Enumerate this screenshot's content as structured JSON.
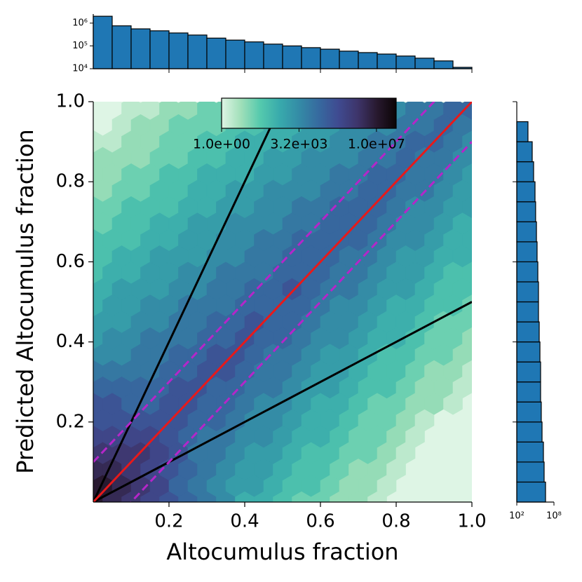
{
  "chart_data": [
    {
      "type": "hexbin",
      "xlabel": "Altocumulus fraction",
      "ylabel": "Predicted Altocumulus fraction",
      "xlim": [
        0,
        1
      ],
      "ylim": [
        0,
        1
      ],
      "xticks": [
        0.2,
        0.4,
        0.6,
        0.8,
        {
          "value": 1,
          "label": "1.0"
        }
      ],
      "yticks": [
        0.2,
        0.4,
        0.6,
        0.8,
        {
          "value": 1,
          "label": "1.0"
        }
      ],
      "log_color": true,
      "clim": [
        1,
        78000000
      ],
      "colormap": [
        "#def5e5",
        "#a0dfb9",
        "#54c9ad",
        "#38aaac",
        "#348ba6",
        "#366a9f",
        "#3f4b91",
        "#3e356b",
        "#28192f",
        "#0b0405"
      ],
      "colorbar_ticks": [
        {
          "value": 1,
          "label": "1.0e+00"
        },
        {
          "value": 3162.28,
          "label": "3.2e+03"
        },
        {
          "value": 10000000,
          "label": "1.0e+07"
        }
      ],
      "lines": [
        {
          "slope": 2,
          "intercept": 0,
          "color": "#000000",
          "dash": false
        },
        {
          "slope": 0.5,
          "intercept": 0,
          "color": "#000000",
          "dash": false
        },
        {
          "slope": 1,
          "intercept": 0,
          "color": "#e8191a",
          "dash": false
        },
        {
          "slope": 1,
          "intercept": 0.1,
          "color": "#b526c9",
          "dash": true
        },
        {
          "slope": 1,
          "intercept": -0.1,
          "color": "#b526c9",
          "dash": true
        }
      ],
      "counts": [
        [
          10000000.0,
          3000000.0,
          1000000.0,
          300000.0,
          100000.0,
          30000.0,
          10000.0,
          3000.0,
          300,
          300,
          100,
          30,
          30,
          10,
          10,
          3,
          null,
          null,
          null,
          null,
          null
        ],
        [
          10000000.0,
          3000000.0,
          1000000.0,
          300000.0,
          30000.0,
          10000.0,
          3000.0,
          1000.0,
          1000.0,
          300,
          100,
          100,
          30,
          10,
          10,
          3,
          null,
          null,
          null,
          null
        ],
        [
          3000000.0,
          3000000.0,
          1000000.0,
          300000.0,
          100000.0,
          30000.0,
          10000.0,
          3000.0,
          1000.0,
          1000.0,
          300,
          100,
          100,
          30,
          10,
          10,
          3,
          null,
          null,
          null,
          null
        ],
        [
          1000000.0,
          1000000.0,
          1000000.0,
          300000.0,
          100000.0,
          10000.0,
          10000.0,
          3000.0,
          1000.0,
          1000.0,
          300,
          100,
          100,
          30,
          30,
          10,
          3,
          null,
          null,
          null
        ],
        [
          300000.0,
          300000.0,
          300000.0,
          300000.0,
          100000.0,
          30000.0,
          10000.0,
          10000.0,
          3000.0,
          3000.0,
          1000.0,
          300,
          300,
          100,
          30,
          30,
          10,
          3,
          null,
          null,
          null
        ],
        [
          100000.0,
          100000.0,
          100000.0,
          100000.0,
          100000.0,
          30000.0,
          30000.0,
          10000.0,
          3000.0,
          3000.0,
          1000.0,
          300,
          300,
          100,
          30,
          30,
          10,
          3,
          null,
          null
        ],
        [
          100000.0,
          100000.0,
          30000.0,
          30000.0,
          100000.0,
          100000.0,
          30000.0,
          30000.0,
          10000.0,
          3000.0,
          3000.0,
          1000.0,
          300,
          300,
          100,
          30,
          30,
          10,
          10,
          3,
          null
        ],
        [
          30000.0,
          30000.0,
          30000.0,
          30000.0,
          100000.0,
          100000.0,
          30000.0,
          30000.0,
          10000.0,
          10000.0,
          3000.0,
          1000.0,
          1000.0,
          300,
          100,
          100,
          30,
          10,
          10,
          3
        ],
        [
          10000.0,
          10000.0,
          10000.0,
          10000.0,
          30000.0,
          30000.0,
          100000.0,
          100000.0,
          30000.0,
          10000.0,
          10000.0,
          3000.0,
          1000.0,
          1000.0,
          300,
          100,
          100,
          30,
          10,
          10,
          3
        ],
        [
          3000.0,
          3000.0,
          10000.0,
          10000.0,
          30000.0,
          30000.0,
          100000.0,
          100000.0,
          30000.0,
          10000.0,
          10000.0,
          3000.0,
          1000.0,
          1000.0,
          300,
          100,
          100,
          30,
          30,
          10
        ],
        [
          1000.0,
          3000.0,
          3000.0,
          10000.0,
          10000.0,
          10000.0,
          30000.0,
          30000.0,
          100000.0,
          30000.0,
          30000.0,
          10000.0,
          3000.0,
          3000.0,
          1000.0,
          300,
          300,
          100,
          30,
          30,
          10
        ],
        [
          1000.0,
          1000.0,
          3000.0,
          3000.0,
          10000.0,
          10000.0,
          30000.0,
          30000.0,
          100000.0,
          30000.0,
          30000.0,
          10000.0,
          3000.0,
          3000.0,
          1000.0,
          300,
          300,
          100,
          30,
          30
        ],
        [
          300,
          1000.0,
          1000.0,
          3000.0,
          3000.0,
          10000.0,
          10000.0,
          10000.0,
          30000.0,
          30000.0,
          30000.0,
          30000.0,
          10000.0,
          3000.0,
          3000.0,
          1000.0,
          300,
          300,
          100,
          100,
          30
        ],
        [
          300,
          1000.0,
          1000.0,
          1000.0,
          3000.0,
          3000.0,
          10000.0,
          10000.0,
          30000.0,
          30000.0,
          100000.0,
          30000.0,
          10000.0,
          10000.0,
          3000.0,
          1000.0,
          1000.0,
          300,
          100,
          100
        ],
        [
          100,
          300,
          300,
          1000.0,
          1000.0,
          3000.0,
          3000.0,
          10000.0,
          10000.0,
          10000.0,
          30000.0,
          30000.0,
          30000.0,
          10000.0,
          10000.0,
          3000.0,
          1000.0,
          1000.0,
          300,
          100,
          100
        ],
        [
          100,
          300,
          300,
          1000.0,
          1000.0,
          1000.0,
          3000.0,
          3000.0,
          10000.0,
          10000.0,
          30000.0,
          30000.0,
          30000.0,
          10000.0,
          10000.0,
          3000.0,
          1000.0,
          1000.0,
          300,
          300
        ],
        [
          100,
          100,
          100,
          300,
          300,
          1000.0,
          1000.0,
          3000.0,
          3000.0,
          10000.0,
          10000.0,
          30000.0,
          30000.0,
          30000.0,
          30000.0,
          10000.0,
          3000.0,
          3000.0,
          1000.0,
          300,
          300
        ],
        [
          30,
          100,
          100,
          300,
          300,
          1000.0,
          1000.0,
          3000.0,
          3000.0,
          3000.0,
          10000.0,
          10000.0,
          30000.0,
          30000.0,
          30000.0,
          10000.0,
          3000.0,
          3000.0,
          1000.0,
          300
        ],
        [
          30,
          30,
          100,
          100,
          100,
          300,
          300,
          1000.0,
          1000.0,
          3000.0,
          3000.0,
          10000.0,
          10000.0,
          30000.0,
          30000.0,
          30000.0,
          10000.0,
          3000.0,
          3000.0,
          1000.0,
          1000.0
        ],
        [
          10,
          30,
          30,
          100,
          100,
          300,
          300,
          1000.0,
          1000.0,
          3000.0,
          3000.0,
          3000.0,
          10000.0,
          10000.0,
          30000.0,
          30000.0,
          10000.0,
          10000.0,
          3000.0,
          1000.0
        ],
        [
          10,
          10,
          30,
          30,
          100,
          100,
          300,
          300,
          300,
          1000.0,
          1000.0,
          3000.0,
          3000.0,
          10000.0,
          10000.0,
          30000.0,
          30000.0,
          10000.0,
          10000.0,
          3000.0,
          1000.0
        ],
        [
          10,
          10,
          10,
          30,
          30,
          100,
          100,
          300,
          300,
          1000.0,
          1000.0,
          3000.0,
          3000.0,
          3000.0,
          10000.0,
          10000.0,
          30000.0,
          10000.0,
          10000.0,
          3000.0
        ],
        [
          3,
          3,
          10,
          10,
          30,
          30,
          100,
          100,
          300,
          300,
          300,
          1000.0,
          1000.0,
          3000.0,
          3000.0,
          10000.0,
          10000.0,
          30000.0,
          30000.0,
          10000.0,
          3000.0
        ],
        [
          null,
          3,
          10,
          10,
          30,
          30,
          30,
          100,
          100,
          300,
          300,
          1000.0,
          1000.0,
          3000.0,
          3000.0,
          3000.0,
          10000.0,
          10000.0,
          30000.0,
          10000.0
        ],
        [
          null,
          null,
          3,
          3,
          10,
          10,
          30,
          30,
          100,
          100,
          300,
          300,
          300,
          1000.0,
          1000.0,
          3000.0,
          3000.0,
          10000.0,
          10000.0,
          30000.0,
          30000.0
        ]
      ]
    },
    {
      "type": "histogram",
      "orientation": "vertical",
      "bins": [
        0,
        0.05,
        0.1,
        0.15,
        0.2,
        0.25,
        0.3,
        0.35,
        0.4,
        0.45,
        0.5,
        0.55,
        0.6,
        0.65,
        0.7,
        0.75,
        0.8,
        0.85,
        0.9,
        0.95,
        1
      ],
      "values": [
        2000000,
        760000,
        560000,
        460000,
        370000,
        300000,
        220000,
        180000,
        150000,
        120000,
        100000,
        84000,
        72000,
        59000,
        51000,
        44000,
        36000,
        29000,
        22000,
        11500
      ],
      "color": "#1f77b4",
      "edgecolor": "#000000",
      "xlim": [
        0,
        1
      ],
      "ylim": [
        10000,
        2500000
      ],
      "log_y": true,
      "yticks": [
        {
          "value": 10000,
          "label": "10⁴"
        },
        {
          "value": 100000,
          "label": "10⁵"
        },
        {
          "value": 1000000,
          "label": "10⁶"
        }
      ]
    },
    {
      "type": "histogram",
      "orientation": "horizontal",
      "bins": [
        0,
        0.05,
        0.1,
        0.15,
        0.2,
        0.25,
        0.3,
        0.35,
        0.4,
        0.45,
        0.5,
        0.55,
        0.6,
        0.65,
        0.7,
        0.75,
        0.8,
        0.85,
        0.9,
        0.95
      ],
      "values": [
        4400000,
        2600000,
        2000000,
        1200000,
        900000,
        700000,
        700000,
        550000,
        420000,
        320000,
        320000,
        250000,
        190000,
        150000,
        110000,
        88000,
        52000,
        31000,
        6400
      ],
      "color": "#1f77b4",
      "edgecolor": "#000000",
      "ylim": [
        0,
        1
      ],
      "xlim": [
        100,
        100000000
      ],
      "log_x": true,
      "xticks": [
        {
          "value": 100,
          "label": "10²"
        },
        {
          "value": 100000000,
          "label": "10⁸"
        }
      ]
    }
  ]
}
